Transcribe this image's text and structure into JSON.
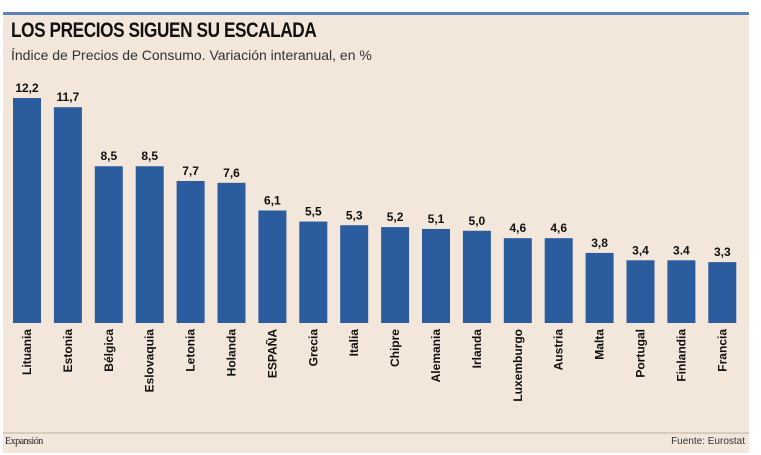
{
  "header": {
    "title": "LOS PRECIOS SIGUEN SU ESCALADA",
    "subtitle": "Índice de Precios de Consumo. Variación interanual, en %"
  },
  "footer": {
    "brand": "Expansión",
    "source": "Fuente: Eurostat"
  },
  "colors": {
    "bar": "#2a5c9e",
    "background": "#f3e6da",
    "accent": "#5b84b8"
  },
  "chart_data": {
    "type": "bar",
    "title": "LOS PRECIOS SIGUEN SU ESCALADA",
    "subtitle": "Índice de Precios de Consumo. Variación interanual, en %",
    "xlabel": "",
    "ylabel": "%",
    "ylim": [
      0,
      12.2
    ],
    "grid": false,
    "categories": [
      "Lituania",
      "Estonia",
      "Bélgica",
      "Eslovaquia",
      "Letonia",
      "Holanda",
      "ESPAÑA",
      "Grecia",
      "Italia",
      "Chipre",
      "Alemania",
      "Irlanda",
      "Luxemburgo",
      "Austria",
      "Malta",
      "Portugal",
      "Finlandia",
      "Francia"
    ],
    "values": [
      12.2,
      11.7,
      8.5,
      8.5,
      7.7,
      7.6,
      6.1,
      5.5,
      5.3,
      5.2,
      5.1,
      5.0,
      4.6,
      4.6,
      3.8,
      3.4,
      3.4,
      3.3
    ],
    "labels": [
      "12,2",
      "11,7",
      "8,5",
      "8,5",
      "7,7",
      "7,6",
      "6,1",
      "5,5",
      "5,3",
      "5,2",
      "5,1",
      "5,0",
      "4,6",
      "4,6",
      "3,8",
      "3,4",
      "3.4",
      "3,3"
    ]
  }
}
